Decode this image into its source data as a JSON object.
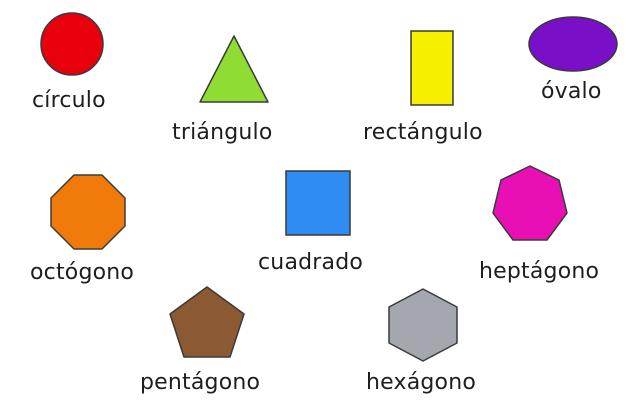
{
  "shapes": {
    "circle": {
      "label": "círculo",
      "color": "#e8000c"
    },
    "triangle": {
      "label": "triángulo",
      "color": "#8edc34"
    },
    "rectangle": {
      "label": "rectángulo",
      "color": "#f6f000"
    },
    "oval": {
      "label": "óvalo",
      "color": "#7a0fc8"
    },
    "octagon": {
      "label": "octógono",
      "color": "#f07a0a"
    },
    "square": {
      "label": "cuadrado",
      "color": "#2f8cf2"
    },
    "heptagon": {
      "label": "heptágono",
      "color": "#e810b4"
    },
    "pentagon": {
      "label": "pentágono",
      "color": "#8b5a32"
    },
    "hexagon": {
      "label": "hexágono",
      "color": "#a4a7ad"
    }
  }
}
